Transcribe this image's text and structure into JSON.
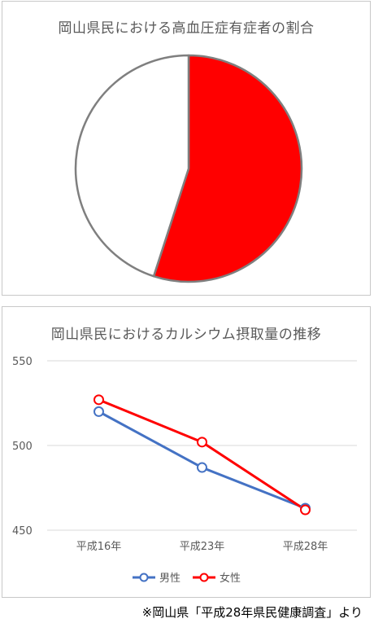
{
  "chart_data": [
    {
      "type": "pie",
      "title": "岡山県民における高血圧症有症者の割合",
      "slices": [
        {
          "value": 55,
          "color": "#ff0000"
        },
        {
          "value": 45,
          "color": "#ffffff"
        }
      ],
      "outline_color": "#7f7f7f"
    },
    {
      "type": "line",
      "title": "岡山県民におけるカルシウム摂取量の推移",
      "categories": [
        "平成16年",
        "平成23年",
        "平成28年"
      ],
      "series": [
        {
          "name": "男性",
          "values": [
            520,
            487,
            463
          ],
          "color": "#4472c4"
        },
        {
          "name": "女性",
          "values": [
            527,
            502,
            462
          ],
          "color": "#ff0000"
        }
      ],
      "yticks": [
        "550",
        "500",
        "450"
      ],
      "ylim": [
        450,
        550
      ],
      "grid": true,
      "legend": "bottom"
    }
  ],
  "source_note": "※岡山県「平成28年県民健康調査」より"
}
